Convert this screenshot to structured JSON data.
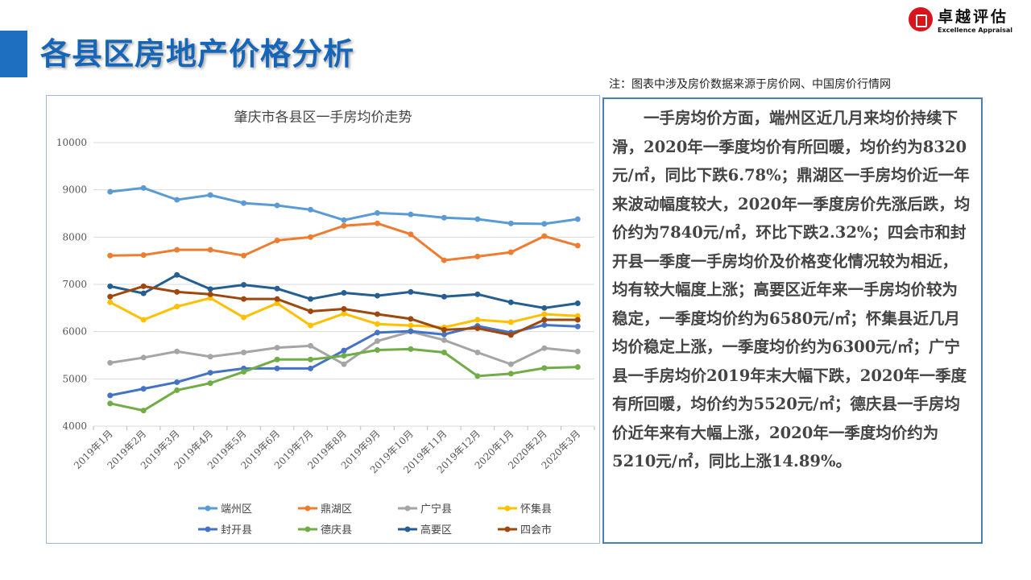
{
  "header": {
    "title": "各县区房地产价格分析",
    "logo_cn": "卓越评估",
    "logo_en": "Excellence Appraisal"
  },
  "note": "注：图表中涉及房价数据来源于房价网、中国房价行情网",
  "description": "一手房均价方面，端州区近几月来均价持续下滑，2020年一季度均价有所回暖，均价约为8320元/㎡，同比下跌6.78%；鼎湖区一手房均价近一年来波动幅度较大，2020年一季度房价先涨后跌，均价约为7840元/㎡，环比下跌2.32%；四会市和封开县一季度一手房均价及价格变化情况较为相近，均有较大幅度上涨；高要区近年来一手房均价较为稳定，一季度均价约为6580元/㎡；怀集县近几月均价稳定上涨，一季度均价约为6300元/㎡；广宁县一手房均价2019年末大幅下跌，2020年一季度有所回暖，均价约为5520元/㎡；德庆县一手房均价近年来有大幅上涨，2020年一季度均价约为5210元/㎡，同比上涨14.89%。",
  "chart_data": {
    "type": "line",
    "title": "肇庆市各县区一手房均价走势",
    "ylim": [
      4000,
      10000
    ],
    "yticks": [
      "4000",
      "5000",
      "6000",
      "7000",
      "8000",
      "9000",
      "10000"
    ],
    "categories": [
      "2019年1月",
      "2019年2月",
      "2019年3月",
      "2019年4月",
      "2019年5月",
      "2019年6月",
      "2019年7月",
      "2019年8月",
      "2019年9月",
      "2019年10月",
      "2019年11月",
      "2019年12月",
      "2020年1月",
      "2020年2月",
      "2020年3月"
    ],
    "legend_position": "bottom",
    "series": [
      {
        "name": "端州区",
        "color": "#5b9bd5",
        "values": [
          8960,
          9040,
          8790,
          8890,
          8720,
          8670,
          8580,
          8360,
          8510,
          8480,
          8410,
          8380,
          8290,
          8280,
          8380
        ]
      },
      {
        "name": "鼎湖区",
        "color": "#ed7d31",
        "values": [
          7610,
          7620,
          7730,
          7730,
          7610,
          7930,
          8000,
          8240,
          8290,
          8060,
          7510,
          7590,
          7680,
          8020,
          7820
        ]
      },
      {
        "name": "广宁县",
        "color": "#a5a5a5",
        "values": [
          5340,
          5450,
          5580,
          5470,
          5560,
          5660,
          5700,
          5310,
          5800,
          6000,
          5820,
          5560,
          5310,
          5650,
          5580
        ]
      },
      {
        "name": "怀集县",
        "color": "#ffc000",
        "values": [
          6620,
          6250,
          6530,
          6710,
          6300,
          6600,
          6130,
          6380,
          6160,
          6130,
          6090,
          6250,
          6200,
          6370,
          6330
        ]
      },
      {
        "name": "封开县",
        "color": "#4472c4",
        "values": [
          4650,
          4790,
          4930,
          5130,
          5220,
          5220,
          5220,
          5600,
          5980,
          6010,
          5940,
          6120,
          5980,
          6140,
          6110
        ]
      },
      {
        "name": "德庆县",
        "color": "#70ad47",
        "values": [
          4480,
          4330,
          4760,
          4910,
          5150,
          5410,
          5410,
          5490,
          5610,
          5630,
          5560,
          5060,
          5110,
          5230,
          5250
        ]
      },
      {
        "name": "高要区",
        "color": "#255e91",
        "values": [
          6960,
          6810,
          7200,
          6900,
          6990,
          6910,
          6690,
          6820,
          6760,
          6840,
          6740,
          6790,
          6620,
          6500,
          6600
        ]
      },
      {
        "name": "四会市",
        "color": "#9e480e",
        "values": [
          6740,
          6960,
          6840,
          6790,
          6690,
          6690,
          6430,
          6480,
          6370,
          6270,
          6040,
          6070,
          5930,
          6250,
          6250
        ]
      }
    ]
  }
}
